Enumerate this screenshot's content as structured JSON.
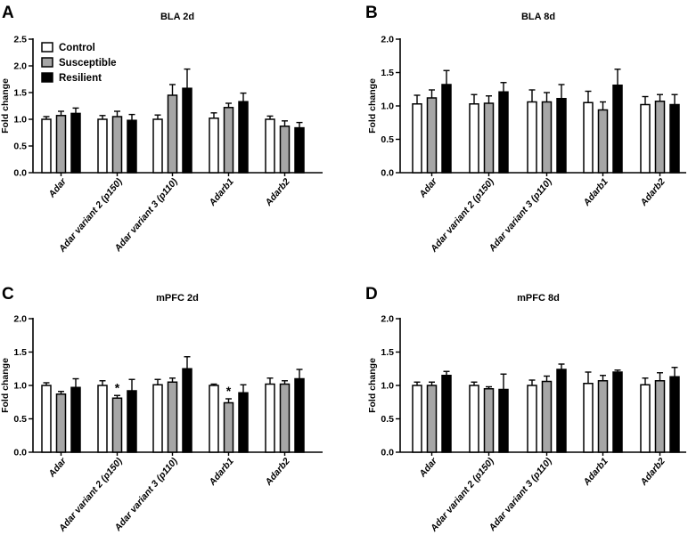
{
  "colors": {
    "Control": "#ffffff",
    "Susceptible": "#a6a6a6",
    "Resilient": "#000000"
  },
  "legend": [
    "Control",
    "Susceptible",
    "Resilient"
  ],
  "chart_data": [
    {
      "type": "bar",
      "panel": "A",
      "title": "BLA 2d",
      "ylabel": "Fold change",
      "xlabel": "",
      "ylim": [
        0,
        2.5
      ],
      "yticks": [
        0,
        0.5,
        1.0,
        1.5,
        2.0,
        2.5
      ],
      "ytick_labels": [
        "0.0",
        "0.5",
        "1.0",
        "1.5",
        "2.0",
        "2.5"
      ],
      "legend_position": "top-left",
      "categories": [
        "Adar",
        "Adar variant 2 (p150)",
        "Adar variant 3 (p110)",
        "Adarb1",
        "Adarb2"
      ],
      "series": [
        {
          "name": "Control",
          "values": [
            1.0,
            1.0,
            1.0,
            1.02,
            1.0
          ],
          "errors": [
            0.05,
            0.07,
            0.08,
            0.1,
            0.06
          ]
        },
        {
          "name": "Susceptible",
          "values": [
            1.07,
            1.05,
            1.45,
            1.22,
            0.87
          ],
          "errors": [
            0.08,
            0.1,
            0.2,
            0.08,
            0.1
          ]
        },
        {
          "name": "Resilient",
          "values": [
            1.11,
            0.98,
            1.58,
            1.33,
            0.84
          ],
          "errors": [
            0.1,
            0.11,
            0.36,
            0.16,
            0.1
          ]
        }
      ],
      "annotations": []
    },
    {
      "type": "bar",
      "panel": "B",
      "title": "BLA 8d",
      "ylabel": "Fold change",
      "xlabel": "",
      "ylim": [
        0,
        2.0
      ],
      "yticks": [
        0,
        0.5,
        1.0,
        1.5,
        2.0
      ],
      "ytick_labels": [
        "0.0",
        "0.5",
        "1.0",
        "1.5",
        "2.0"
      ],
      "categories": [
        "Adar",
        "Adar variant 2 (p150)",
        "Adar variant 3 (p110)",
        "Adarb1",
        "Adarb2"
      ],
      "series": [
        {
          "name": "Control",
          "values": [
            1.03,
            1.03,
            1.06,
            1.05,
            1.02
          ],
          "errors": [
            0.13,
            0.14,
            0.18,
            0.17,
            0.12
          ]
        },
        {
          "name": "Susceptible",
          "values": [
            1.12,
            1.04,
            1.06,
            0.94,
            1.07
          ],
          "errors": [
            0.12,
            0.11,
            0.14,
            0.12,
            0.1
          ]
        },
        {
          "name": "Resilient",
          "values": [
            1.32,
            1.21,
            1.11,
            1.31,
            1.02
          ],
          "errors": [
            0.21,
            0.14,
            0.21,
            0.24,
            0.15
          ]
        }
      ],
      "annotations": []
    },
    {
      "type": "bar",
      "panel": "C",
      "title": "mPFC 2d",
      "ylabel": "Fold change",
      "xlabel": "",
      "ylim": [
        0,
        2.0
      ],
      "yticks": [
        0,
        0.5,
        1.0,
        1.5,
        2.0
      ],
      "ytick_labels": [
        "0.0",
        "0.5",
        "1.0",
        "1.5",
        "2.0"
      ],
      "categories": [
        "Adar",
        "Adar variant 2 (p150)",
        "Adar variant 3 (p110)",
        "Adarb1",
        "Adarb2"
      ],
      "series": [
        {
          "name": "Control",
          "values": [
            1.0,
            1.0,
            1.01,
            1.0,
            1.02
          ],
          "errors": [
            0.04,
            0.07,
            0.08,
            0.02,
            0.09
          ]
        },
        {
          "name": "Susceptible",
          "values": [
            0.87,
            0.81,
            1.05,
            0.74,
            1.02
          ],
          "errors": [
            0.04,
            0.04,
            0.06,
            0.06,
            0.05
          ]
        },
        {
          "name": "Resilient",
          "values": [
            0.97,
            0.92,
            1.25,
            0.89,
            1.1
          ],
          "errors": [
            0.13,
            0.17,
            0.18,
            0.12,
            0.14
          ]
        }
      ],
      "annotations": [
        {
          "text": "*",
          "category": "Adar variant 2 (p150)",
          "series": "Susceptible"
        },
        {
          "text": "*",
          "category": "Adarb1",
          "series": "Susceptible"
        }
      ]
    },
    {
      "type": "bar",
      "panel": "D",
      "title": "mPFC 8d",
      "ylabel": "Fold change",
      "xlabel": "",
      "ylim": [
        0,
        2.0
      ],
      "yticks": [
        0,
        0.5,
        1.0,
        1.5,
        2.0
      ],
      "ytick_labels": [
        "0.0",
        "0.5",
        "1.0",
        "1.5",
        "2.0"
      ],
      "categories": [
        "Adar",
        "Adar variant 2 (p150)",
        "Adar variant 3 (p110)",
        "Adarb1",
        "Adarb2"
      ],
      "series": [
        {
          "name": "Control",
          "values": [
            1.0,
            1.0,
            1.0,
            1.03,
            1.01
          ],
          "errors": [
            0.05,
            0.05,
            0.08,
            0.17,
            0.1
          ]
        },
        {
          "name": "Susceptible",
          "values": [
            1.0,
            0.95,
            1.06,
            1.07,
            1.07
          ],
          "errors": [
            0.05,
            0.03,
            0.08,
            0.08,
            0.12
          ]
        },
        {
          "name": "Resilient",
          "values": [
            1.15,
            0.94,
            1.24,
            1.2,
            1.13
          ],
          "errors": [
            0.06,
            0.23,
            0.08,
            0.03,
            0.14
          ]
        }
      ],
      "annotations": []
    }
  ]
}
